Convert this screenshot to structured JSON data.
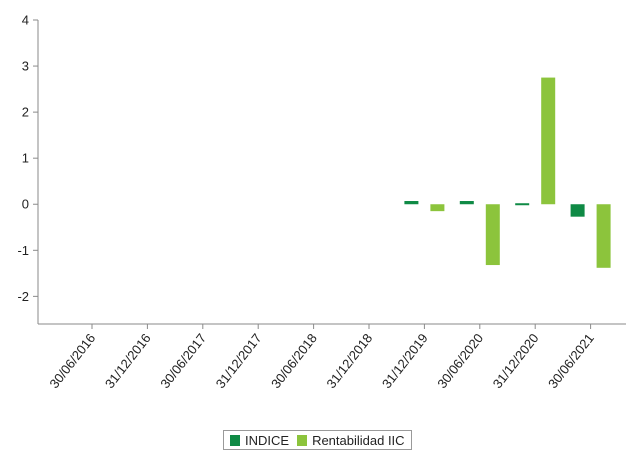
{
  "chart_data": {
    "type": "bar",
    "title": "",
    "xlabel": "",
    "ylabel": "",
    "ylim": [
      -2.6,
      4
    ],
    "yticks": [
      4,
      3,
      2,
      1,
      0,
      -1,
      -2
    ],
    "ytick_labels": [
      "4",
      "3",
      "2",
      "1",
      "0",
      "-1",
      "-2"
    ],
    "grid": false,
    "legend_position": "bottom-center",
    "categories": [
      "30/06/2016",
      "31/12/2016",
      "30/06/2017",
      "31/12/2017",
      "30/06/2018",
      "31/12/2018",
      "31/12/2019",
      "30/06/2020",
      "31/12/2020",
      "30/06/2021"
    ],
    "series": [
      {
        "name": "INDICE",
        "color": "#0f8a45",
        "values": [
          null,
          null,
          null,
          null,
          null,
          null,
          0.07,
          0.07,
          -0.02,
          -0.27
        ]
      },
      {
        "name": "Rentabilidad IIC",
        "color": "#8cc43c",
        "values": [
          null,
          null,
          null,
          null,
          null,
          null,
          -0.15,
          -1.32,
          2.75,
          -1.38
        ]
      }
    ]
  }
}
